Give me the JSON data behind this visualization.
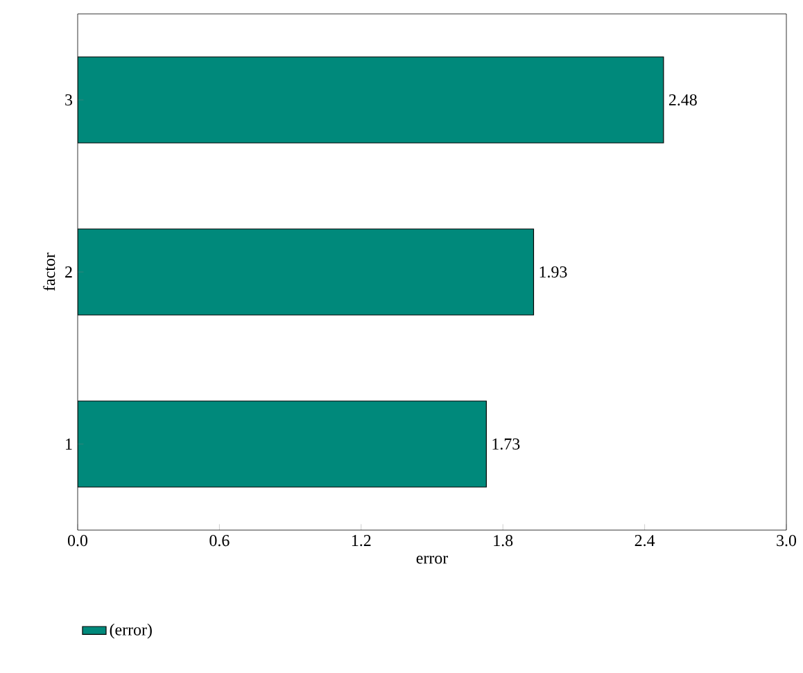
{
  "chart_data": {
    "type": "bar",
    "orientation": "horizontal",
    "xlabel": "error",
    "ylabel": "factor",
    "categories": [
      "3",
      "2",
      "1"
    ],
    "series": [
      {
        "name": "(error)",
        "color": "#00897b",
        "values": [
          2.48,
          1.93,
          1.73
        ]
      }
    ],
    "xlim": [
      0,
      3
    ],
    "xticks": [
      {
        "value": 0,
        "label": "0.0"
      },
      {
        "value": 0.6,
        "label": "0.6"
      },
      {
        "value": 1.2,
        "label": "1.2"
      },
      {
        "value": 1.8,
        "label": "1.8"
      },
      {
        "value": 2.4,
        "label": "2.4"
      },
      {
        "value": 3,
        "label": "3.0"
      }
    ],
    "data_labels": true,
    "legend": "bottom left",
    "grid": false
  }
}
